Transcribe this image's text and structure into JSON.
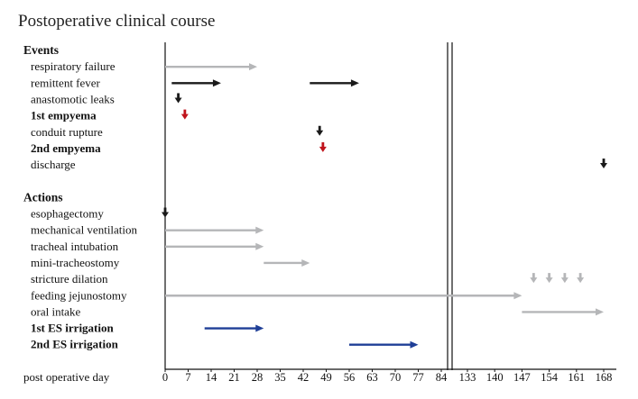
{
  "chart_data": {
    "type": "timeline",
    "title": "Postoperative clinical course",
    "xlabel": "post operative day",
    "x_ticks": [
      "0",
      "7",
      "14",
      "21",
      "28",
      "35",
      "42",
      "49",
      "56",
      "63",
      "70",
      "77",
      "84",
      "133",
      "140",
      "147",
      "154",
      "161",
      "168"
    ],
    "axis_break": {
      "after": 84,
      "resume": 133
    },
    "colors": {
      "gray": "#b5b6b8",
      "black": "#1a1a1a",
      "red": "#c0141c",
      "blue": "#1f3f97"
    },
    "groups": [
      {
        "header": "Events",
        "rows": [
          {
            "label": "respiratory failure",
            "style": "normal",
            "marks": [
              {
                "kind": "arrow",
                "start": 0,
                "end": 28,
                "color": "gray"
              }
            ]
          },
          {
            "label": "remittent fever",
            "style": "normal",
            "marks": [
              {
                "kind": "arrow",
                "start": 2,
                "end": 17,
                "color": "black"
              },
              {
                "kind": "arrow",
                "start": 44,
                "end": 59,
                "color": "black"
              }
            ]
          },
          {
            "label": "anastomotic leaks",
            "style": "normal",
            "marks": [
              {
                "kind": "point",
                "day": 4,
                "color": "black"
              }
            ]
          },
          {
            "label": "1st empyema",
            "style": "red",
            "marks": [
              {
                "kind": "point",
                "day": 6,
                "color": "red"
              }
            ]
          },
          {
            "label": "conduit rupture",
            "style": "normal",
            "marks": [
              {
                "kind": "point",
                "day": 47,
                "color": "black"
              }
            ]
          },
          {
            "label": "2nd empyema",
            "style": "red",
            "marks": [
              {
                "kind": "point",
                "day": 48,
                "color": "red"
              }
            ]
          },
          {
            "label": "discharge",
            "style": "normal",
            "marks": [
              {
                "kind": "point",
                "day": 168,
                "color": "black"
              }
            ]
          }
        ]
      },
      {
        "header": "Actions",
        "rows": [
          {
            "label": "esophagectomy",
            "style": "normal",
            "marks": [
              {
                "kind": "point",
                "day": 0,
                "color": "black"
              }
            ]
          },
          {
            "label": "mechanical ventilation",
            "style": "normal",
            "marks": [
              {
                "kind": "arrow",
                "start": 0,
                "end": 30,
                "color": "gray"
              }
            ]
          },
          {
            "label": "tracheal intubation",
            "style": "normal",
            "marks": [
              {
                "kind": "arrow",
                "start": 0,
                "end": 30,
                "color": "gray"
              }
            ]
          },
          {
            "label": "mini-tracheostomy",
            "style": "normal",
            "marks": [
              {
                "kind": "arrow",
                "start": 30,
                "end": 44,
                "color": "gray"
              }
            ]
          },
          {
            "label": "stricture dilation",
            "style": "normal",
            "marks": [
              {
                "kind": "point",
                "day": 150,
                "color": "gray"
              },
              {
                "kind": "point",
                "day": 154,
                "color": "gray"
              },
              {
                "kind": "point",
                "day": 158,
                "color": "gray"
              },
              {
                "kind": "point",
                "day": 162,
                "color": "gray"
              }
            ]
          },
          {
            "label": "feeding jejunostomy",
            "style": "normal",
            "marks": [
              {
                "kind": "arrow",
                "start": 0,
                "end": 147,
                "color": "gray"
              }
            ]
          },
          {
            "label": "oral intake",
            "style": "normal",
            "marks": [
              {
                "kind": "arrow",
                "start": 147,
                "end": 168,
                "color": "gray"
              }
            ]
          },
          {
            "label": "1st ES irrigation",
            "style": "blue",
            "marks": [
              {
                "kind": "arrow",
                "start": 12,
                "end": 30,
                "color": "blue"
              }
            ]
          },
          {
            "label": "2nd ES irrigation",
            "style": "blue",
            "marks": [
              {
                "kind": "arrow",
                "start": 56,
                "end": 77,
                "color": "blue"
              }
            ]
          }
        ]
      }
    ]
  }
}
